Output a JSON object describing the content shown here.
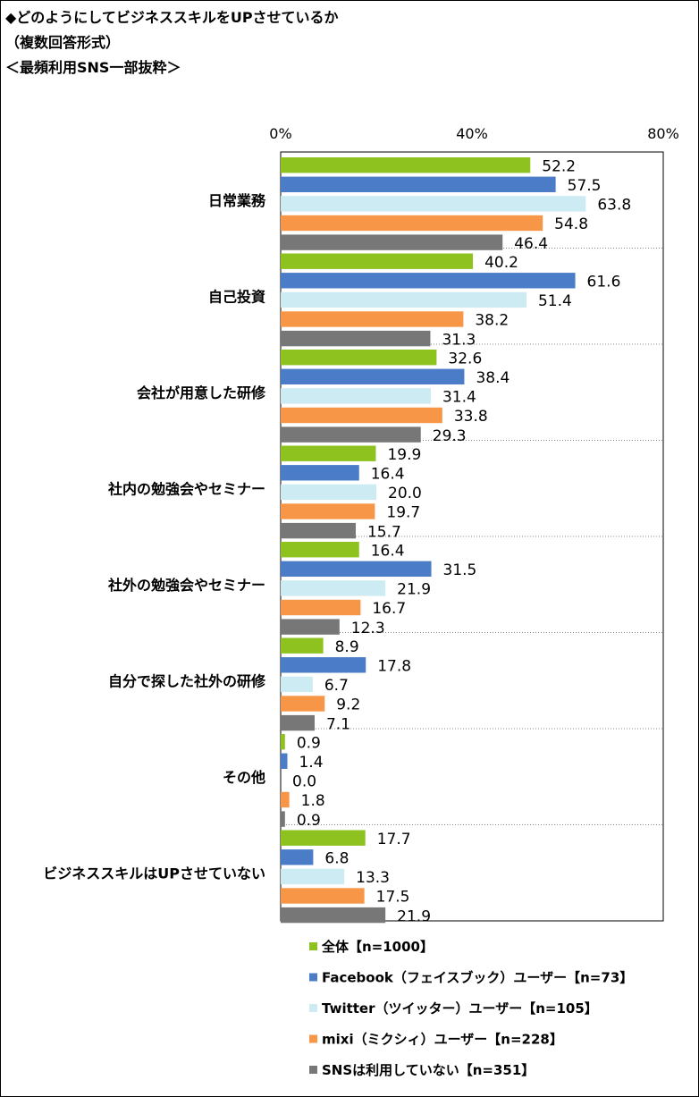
{
  "title": {
    "line1": "◆どのようにしてビジネススキルをUPさせているか",
    "line2": "（複数回答形式）",
    "line3": "＜最頻利用SNS一部抜粋＞"
  },
  "chart_data": {
    "type": "bar",
    "orientation": "horizontal",
    "title": "どのようにしてビジネススキルをUPさせているか",
    "xlim": [
      0,
      80
    ],
    "ticks": [
      0,
      40,
      80
    ],
    "tick_labels": [
      "0%",
      "40%",
      "80%"
    ],
    "grid": false,
    "categories": [
      "日常業務",
      "自己投資",
      "会社が用意した研修",
      "社内の勉強会やセミナー",
      "社外の勉強会やセミナー",
      "自分で探した社外の研修",
      "その他",
      "ビジネススキルはUPさせていない"
    ],
    "series": [
      {
        "name": "全体【n=1000】",
        "color": "#8DC21F",
        "values": [
          52.2,
          40.2,
          32.6,
          19.9,
          16.4,
          8.9,
          0.9,
          17.7
        ],
        "labels": [
          "52.2",
          "40.2",
          "32.6",
          "19.9",
          "16.4",
          "8.9",
          "0.9",
          "17.7"
        ]
      },
      {
        "name": "Facebook（フェイスブック）ユーザー【n=73】",
        "color": "#4A7CC8",
        "values": [
          57.5,
          61.6,
          38.4,
          16.4,
          31.5,
          17.8,
          1.4,
          6.8
        ],
        "labels": [
          "57.5",
          "61.6",
          "38.4",
          "16.4",
          "31.5",
          "17.8",
          "1.4",
          "6.8"
        ]
      },
      {
        "name": "Twitter（ツイッター）ユーザー【n=105】",
        "color": "#CDEBF3",
        "values": [
          63.8,
          51.4,
          31.4,
          20.0,
          21.9,
          6.7,
          0.0,
          13.3
        ],
        "labels": [
          "63.8",
          "51.4",
          "31.4",
          "20.0",
          "21.9",
          "6.7",
          "0.0",
          "13.3"
        ]
      },
      {
        "name": "mixi（ミクシィ）ユーザー【n=228】",
        "color": "#F79646",
        "values": [
          54.8,
          38.2,
          33.8,
          19.7,
          16.7,
          9.2,
          1.8,
          17.5
        ],
        "labels": [
          "54.8",
          "38.2",
          "33.8",
          "19.7",
          "16.7",
          "9.2",
          "1.8",
          "17.5"
        ]
      },
      {
        "name": "SNSは利用していない【n=351】",
        "color": "#777777",
        "values": [
          46.4,
          31.3,
          29.3,
          15.7,
          12.3,
          7.1,
          0.9,
          21.9
        ],
        "labels": [
          "46.4",
          "31.3",
          "29.3",
          "15.7",
          "12.3",
          "7.1",
          "0.9",
          "21.9"
        ]
      }
    ]
  }
}
